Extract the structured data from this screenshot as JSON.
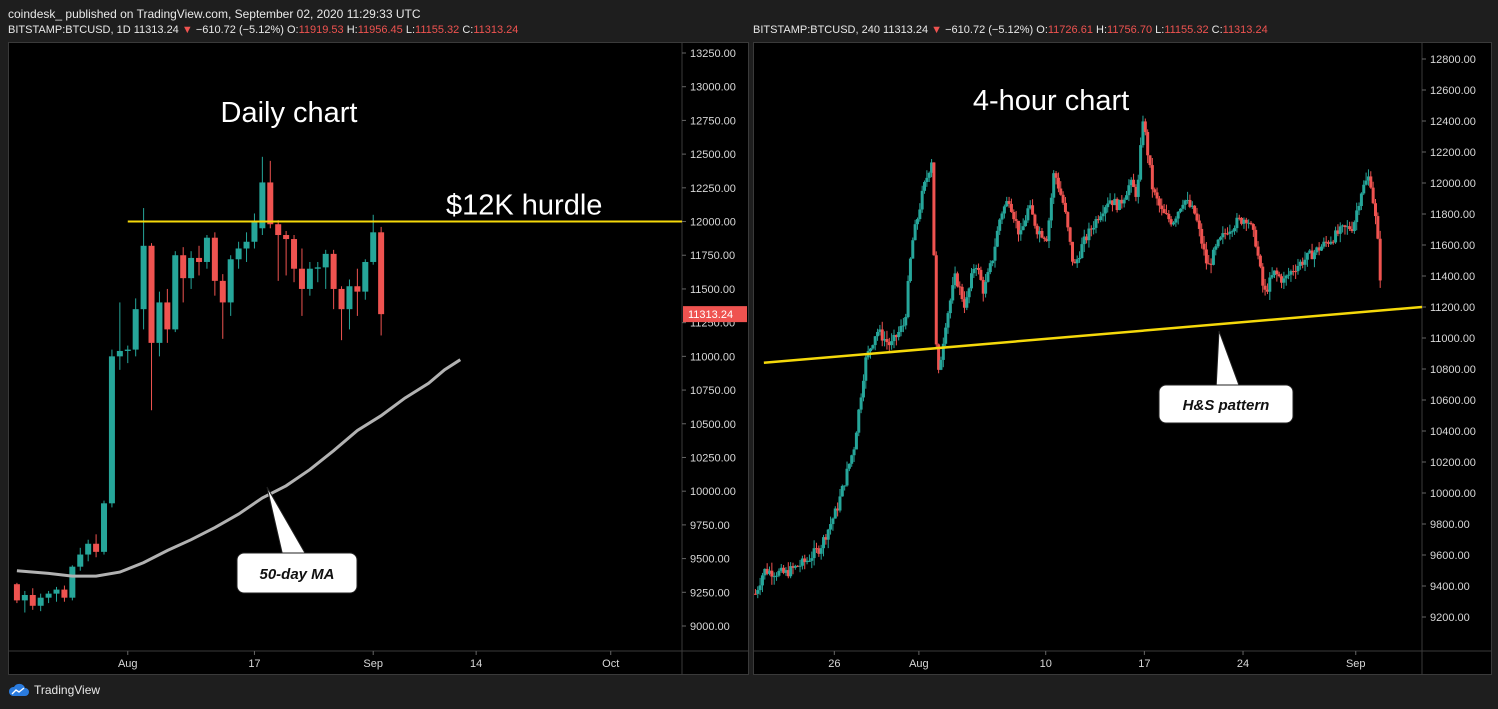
{
  "header": {
    "publisher": "coindesk_",
    "published_text": "published on TradingView.com, September 02, 2020 11:29:33 UTC"
  },
  "footer": {
    "brand": "TradingView"
  },
  "colors": {
    "up": "#26a69a",
    "down": "#ef5350",
    "hurdle": "#f5d90a",
    "ma": "#b2b2b2",
    "bg": "#000000"
  },
  "chart_data": [
    {
      "type": "candlestick",
      "symbol": "BITSTAMP:BTCUSD",
      "interval": "1D",
      "last": "11313.24",
      "change": "−610.72 (−5.12%)",
      "open": "11919.53",
      "high": "11956.45",
      "low": "11155.32",
      "close": "11313.24",
      "title": "Daily chart",
      "price_label": "11313.24",
      "ylim": [
        8850,
        13350
      ],
      "y_ticks": [
        "13250.00",
        "13000.00",
        "12750.00",
        "12500.00",
        "12250.00",
        "12000.00",
        "11750.00",
        "11500.00",
        "11250.00",
        "11000.00",
        "10750.00",
        "10500.00",
        "10250.00",
        "10000.00",
        "9750.00",
        "9500.00",
        "9250.00",
        "9000.00"
      ],
      "x_ticks": [
        {
          "label": "Aug",
          "t": 10
        },
        {
          "label": "17",
          "t": 26
        },
        {
          "label": "Sep",
          "t": 41
        },
        {
          "label": "14",
          "t": 54
        },
        {
          "label": "Oct",
          "t": 71
        }
      ],
      "x_range": [
        -5,
        80
      ],
      "annotations": [
        {
          "text": "$12K hurdle",
          "kind": "horizontal-line",
          "value": 12000
        },
        {
          "text": "50-day MA",
          "kind": "callout"
        }
      ],
      "candles": [
        [
          -4,
          9310,
          9320,
          9170,
          9190
        ],
        [
          -3,
          9190,
          9260,
          9100,
          9230
        ],
        [
          -2,
          9230,
          9280,
          9120,
          9150
        ],
        [
          -1,
          9150,
          9240,
          9110,
          9210
        ],
        [
          0,
          9210,
          9260,
          9170,
          9240
        ],
        [
          1,
          9240,
          9290,
          9180,
          9270
        ],
        [
          2,
          9270,
          9300,
          9180,
          9210
        ],
        [
          3,
          9210,
          9450,
          9190,
          9440
        ],
        [
          4,
          9440,
          9580,
          9410,
          9530
        ],
        [
          5,
          9530,
          9640,
          9480,
          9610
        ],
        [
          6,
          9610,
          9680,
          9510,
          9550
        ],
        [
          7,
          9550,
          9930,
          9530,
          9910
        ],
        [
          8,
          9910,
          11050,
          9880,
          11000
        ],
        [
          9,
          11000,
          11400,
          10900,
          11040
        ],
        [
          10,
          11040,
          11080,
          10950,
          11050
        ],
        [
          11,
          11050,
          11430,
          11000,
          11350
        ],
        [
          12,
          11350,
          12100,
          11200,
          11820
        ],
        [
          13,
          11820,
          11840,
          10600,
          11100
        ],
        [
          14,
          11100,
          11480,
          11000,
          11400
        ],
        [
          15,
          11400,
          11500,
          11100,
          11200
        ],
        [
          16,
          11200,
          11780,
          11180,
          11750
        ],
        [
          17,
          11750,
          11810,
          11400,
          11580
        ],
        [
          18,
          11580,
          11780,
          11500,
          11730
        ],
        [
          19,
          11730,
          11820,
          11600,
          11700
        ],
        [
          20,
          11700,
          11900,
          11650,
          11880
        ],
        [
          21,
          11880,
          11920,
          11450,
          11560
        ],
        [
          22,
          11560,
          11610,
          11130,
          11400
        ],
        [
          23,
          11400,
          11750,
          11300,
          11720
        ],
        [
          24,
          11720,
          11850,
          11650,
          11800
        ],
        [
          25,
          11800,
          11920,
          11700,
          11850
        ],
        [
          26,
          11850,
          12060,
          11800,
          12000
        ],
        [
          27,
          11950,
          12480,
          11900,
          12290
        ],
        [
          28,
          12290,
          12450,
          11950,
          11980
        ],
        [
          29,
          11980,
          12010,
          11560,
          11900
        ],
        [
          30,
          11900,
          11930,
          11600,
          11870
        ],
        [
          31,
          11870,
          11900,
          11550,
          11650
        ],
        [
          32,
          11650,
          11800,
          11300,
          11500
        ],
        [
          33,
          11500,
          11700,
          11450,
          11650
        ],
        [
          34,
          11650,
          11700,
          11550,
          11660
        ],
        [
          35,
          11660,
          11790,
          11500,
          11760
        ],
        [
          36,
          11760,
          11790,
          11350,
          11500
        ],
        [
          37,
          11500,
          11520,
          11120,
          11350
        ],
        [
          38,
          11350,
          11570,
          11200,
          11520
        ],
        [
          39,
          11520,
          11650,
          11300,
          11480
        ],
        [
          40,
          11480,
          11720,
          11420,
          11700
        ],
        [
          41,
          11700,
          12050,
          11680,
          11920
        ],
        [
          42,
          11920,
          11960,
          11155,
          11313
        ]
      ],
      "ma50": [
        [
          -4,
          9410
        ],
        [
          0,
          9390
        ],
        [
          3,
          9370
        ],
        [
          6,
          9370
        ],
        [
          9,
          9400
        ],
        [
          12,
          9470
        ],
        [
          15,
          9560
        ],
        [
          18,
          9640
        ],
        [
          21,
          9730
        ],
        [
          24,
          9830
        ],
        [
          27,
          9950
        ],
        [
          30,
          10040
        ],
        [
          33,
          10160
        ],
        [
          36,
          10300
        ],
        [
          39,
          10450
        ],
        [
          42,
          10560
        ],
        [
          45,
          10690
        ],
        [
          48,
          10800
        ],
        [
          50,
          10900
        ],
        [
          52,
          10975
        ]
      ]
    },
    {
      "type": "candlestick",
      "symbol": "BITSTAMP:BTCUSD",
      "interval": "240",
      "last": "11313.24",
      "change": "−610.72 (−5.12%)",
      "open": "11726.61",
      "high": "11756.70",
      "low": "11155.32",
      "close": "11313.24",
      "title": "4-hour chart",
      "ylim": [
        9000,
        12900
      ],
      "y_ticks": [
        "12800.00",
        "12600.00",
        "12400.00",
        "12200.00",
        "12000.00",
        "11800.00",
        "11600.00",
        "11400.00",
        "11200.00",
        "11000.00",
        "10800.00",
        "10600.00",
        "10400.00",
        "10200.00",
        "10000.00",
        "9800.00",
        "9600.00",
        "9400.00",
        "9200.00"
      ],
      "x_ticks": [
        {
          "label": "26",
          "t": 1
        },
        {
          "label": "Aug",
          "t": 7
        },
        {
          "label": "10",
          "t": 16
        },
        {
          "label": "17",
          "t": 23
        },
        {
          "label": "24",
          "t": 30
        },
        {
          "label": "Sep",
          "t": 38
        }
      ],
      "x_range": [
        -4.7,
        42.7
      ],
      "annotations": [
        {
          "text": "H&S pattern",
          "kind": "neckline",
          "from": [
            -4,
            10840
          ],
          "to": [
            42.7,
            11200
          ]
        }
      ],
      "path": [
        [
          -4.6,
          9350
        ],
        [
          -4,
          9500
        ],
        [
          -2.5,
          9480
        ],
        [
          -1,
          9560
        ],
        [
          0,
          9650
        ],
        [
          1.2,
          9900
        ],
        [
          2.4,
          10300
        ],
        [
          3.2,
          10850
        ],
        [
          4,
          11050
        ],
        [
          5,
          10950
        ],
        [
          6,
          11100
        ],
        [
          6.5,
          11600
        ],
        [
          7.3,
          11950
        ],
        [
          7.9,
          12150
        ],
        [
          8.3,
          10700
        ],
        [
          8.9,
          11100
        ],
        [
          9.6,
          11400
        ],
        [
          10.3,
          11200
        ],
        [
          11,
          11500
        ],
        [
          11.6,
          11300
        ],
        [
          12.2,
          11500
        ],
        [
          12.8,
          11800
        ],
        [
          13.4,
          11900
        ],
        [
          14.2,
          11650
        ],
        [
          14.8,
          11850
        ],
        [
          15.4,
          11700
        ],
        [
          16.1,
          11650
        ],
        [
          16.6,
          12080
        ],
        [
          17.3,
          11850
        ],
        [
          18,
          11450
        ],
        [
          18.6,
          11600
        ],
        [
          19.2,
          11700
        ],
        [
          19.8,
          11800
        ],
        [
          20.5,
          11900
        ],
        [
          21.2,
          11850
        ],
        [
          22,
          12000
        ],
        [
          22.5,
          11920
        ],
        [
          22.9,
          12420
        ],
        [
          23.6,
          11950
        ],
        [
          24.3,
          11800
        ],
        [
          25,
          11750
        ],
        [
          25.8,
          11900
        ],
        [
          26.6,
          11800
        ],
        [
          27.5,
          11450
        ],
        [
          28.2,
          11600
        ],
        [
          28.9,
          11700
        ],
        [
          29.6,
          11750
        ],
        [
          30.3,
          11780
        ],
        [
          30.9,
          11620
        ],
        [
          31.5,
          11280
        ],
        [
          32.2,
          11420
        ],
        [
          32.9,
          11370
        ],
        [
          33.6,
          11450
        ],
        [
          34.3,
          11500
        ],
        [
          35,
          11550
        ],
        [
          35.7,
          11600
        ],
        [
          36.4,
          11650
        ],
        [
          37.1,
          11700
        ],
        [
          37.8,
          11720
        ],
        [
          38.4,
          11950
        ],
        [
          39,
          12050
        ],
        [
          39.5,
          11700
        ],
        [
          39.8,
          11313
        ]
      ]
    }
  ]
}
